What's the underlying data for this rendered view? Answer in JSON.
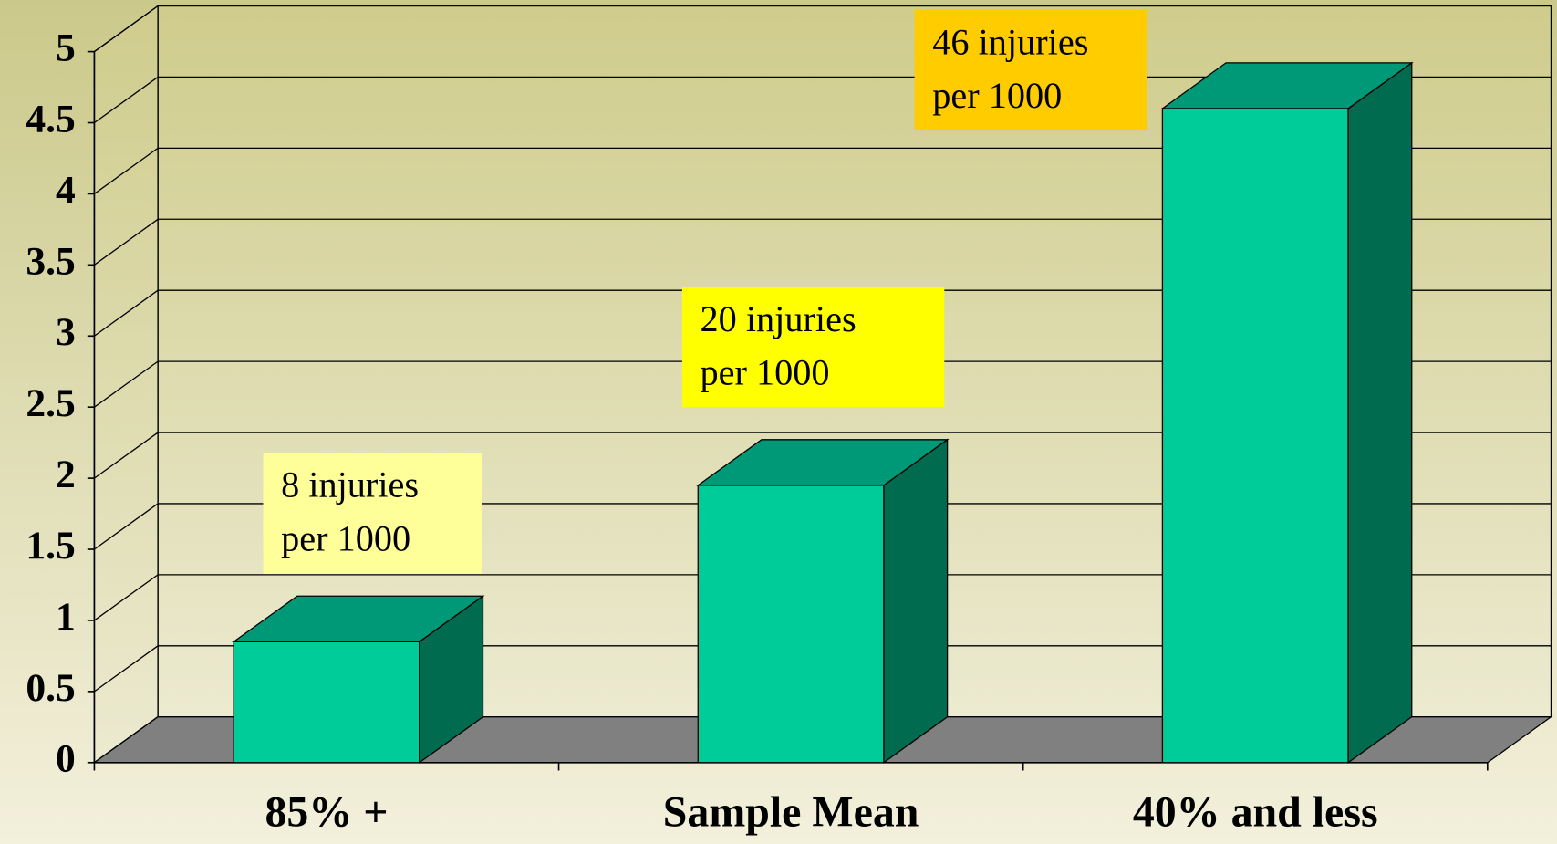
{
  "chart_data": {
    "type": "bar3d",
    "categories": [
      "85% +",
      "Sample Mean",
      "40% and less"
    ],
    "values": [
      0.85,
      1.95,
      4.6
    ],
    "color": "#00cc99",
    "ylim": [
      0,
      5
    ],
    "yticks": [
      0,
      0.5,
      1,
      1.5,
      2,
      2.5,
      3,
      3.5,
      4,
      4.5,
      5
    ],
    "grid": true,
    "annotations": [
      {
        "lines": [
          "8 injuries",
          "per 1000"
        ],
        "color": "#ffff99"
      },
      {
        "lines": [
          "20 injuries",
          "per 1000"
        ],
        "color": "#ffff00"
      },
      {
        "lines": [
          "46 injuries",
          "per 1000"
        ],
        "color": "#ffcc00"
      }
    ]
  }
}
